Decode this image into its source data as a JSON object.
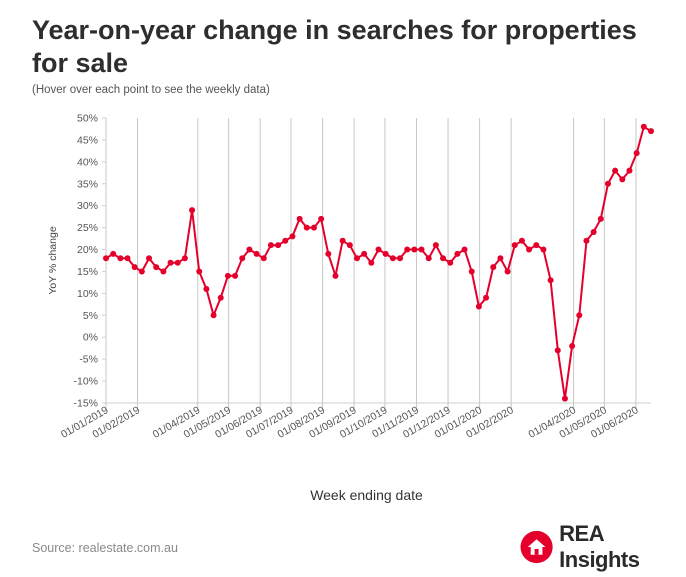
{
  "title": "Year-on-year change in searches for properties for sale",
  "subtitle": "(Hover over each point to see the weekly data)",
  "source": "Source: realestate.com.au",
  "brand": {
    "name": "REA Insights",
    "color": "#e4002b"
  },
  "chart_data": {
    "type": "line",
    "title": "Year-on-year change in searches for properties for sale",
    "xlabel": "Week ending date",
    "ylabel": "YoY % change",
    "ylim": [
      -15,
      50
    ],
    "y_ticks": [
      -15,
      -10,
      -5,
      0,
      5,
      10,
      15,
      20,
      25,
      30,
      35,
      40,
      45,
      50
    ],
    "y_tick_labels": [
      "-15%",
      "-10%",
      "-5%",
      "0%",
      "5%",
      "10%",
      "15%",
      "20%",
      "25%",
      "30%",
      "35%",
      "40%",
      "45%",
      "50%"
    ],
    "x_tick_labels": [
      "01/01/2019",
      "01/02/2019",
      "01/04/2019",
      "01/05/2019",
      "01/06/2019",
      "01/07/2019",
      "01/08/2019",
      "01/09/2019",
      "01/10/2019",
      "01/11/2019",
      "01/12/2019",
      "01/01/2020",
      "01/02/2020",
      "01/04/2020",
      "01/05/2020",
      "01/06/2020"
    ],
    "x_tick_weeks": [
      0,
      4.4,
      12.8,
      17.1,
      21.5,
      25.8,
      30.2,
      34.6,
      38.9,
      43.3,
      47.7,
      52.1,
      56.5,
      65.2,
      69.5,
      73.9
    ],
    "line_color": "#e4002b",
    "series": [
      {
        "name": "YoY % change",
        "values": [
          18,
          19,
          18,
          18,
          16,
          15,
          18,
          16,
          15,
          17,
          17,
          18,
          29,
          15,
          11,
          5,
          9,
          14,
          14,
          18,
          20,
          19,
          18,
          21,
          21,
          22,
          23,
          27,
          25,
          25,
          27,
          19,
          14,
          22,
          21,
          18,
          19,
          17,
          20,
          19,
          18,
          18,
          20,
          20,
          20,
          18,
          21,
          18,
          17,
          19,
          20,
          15,
          7,
          9,
          16,
          18,
          15,
          21,
          22,
          20,
          21,
          20,
          13,
          -3,
          -14,
          -2,
          5,
          22,
          24,
          27,
          35,
          38,
          36,
          38,
          42,
          48,
          47
        ]
      }
    ]
  }
}
